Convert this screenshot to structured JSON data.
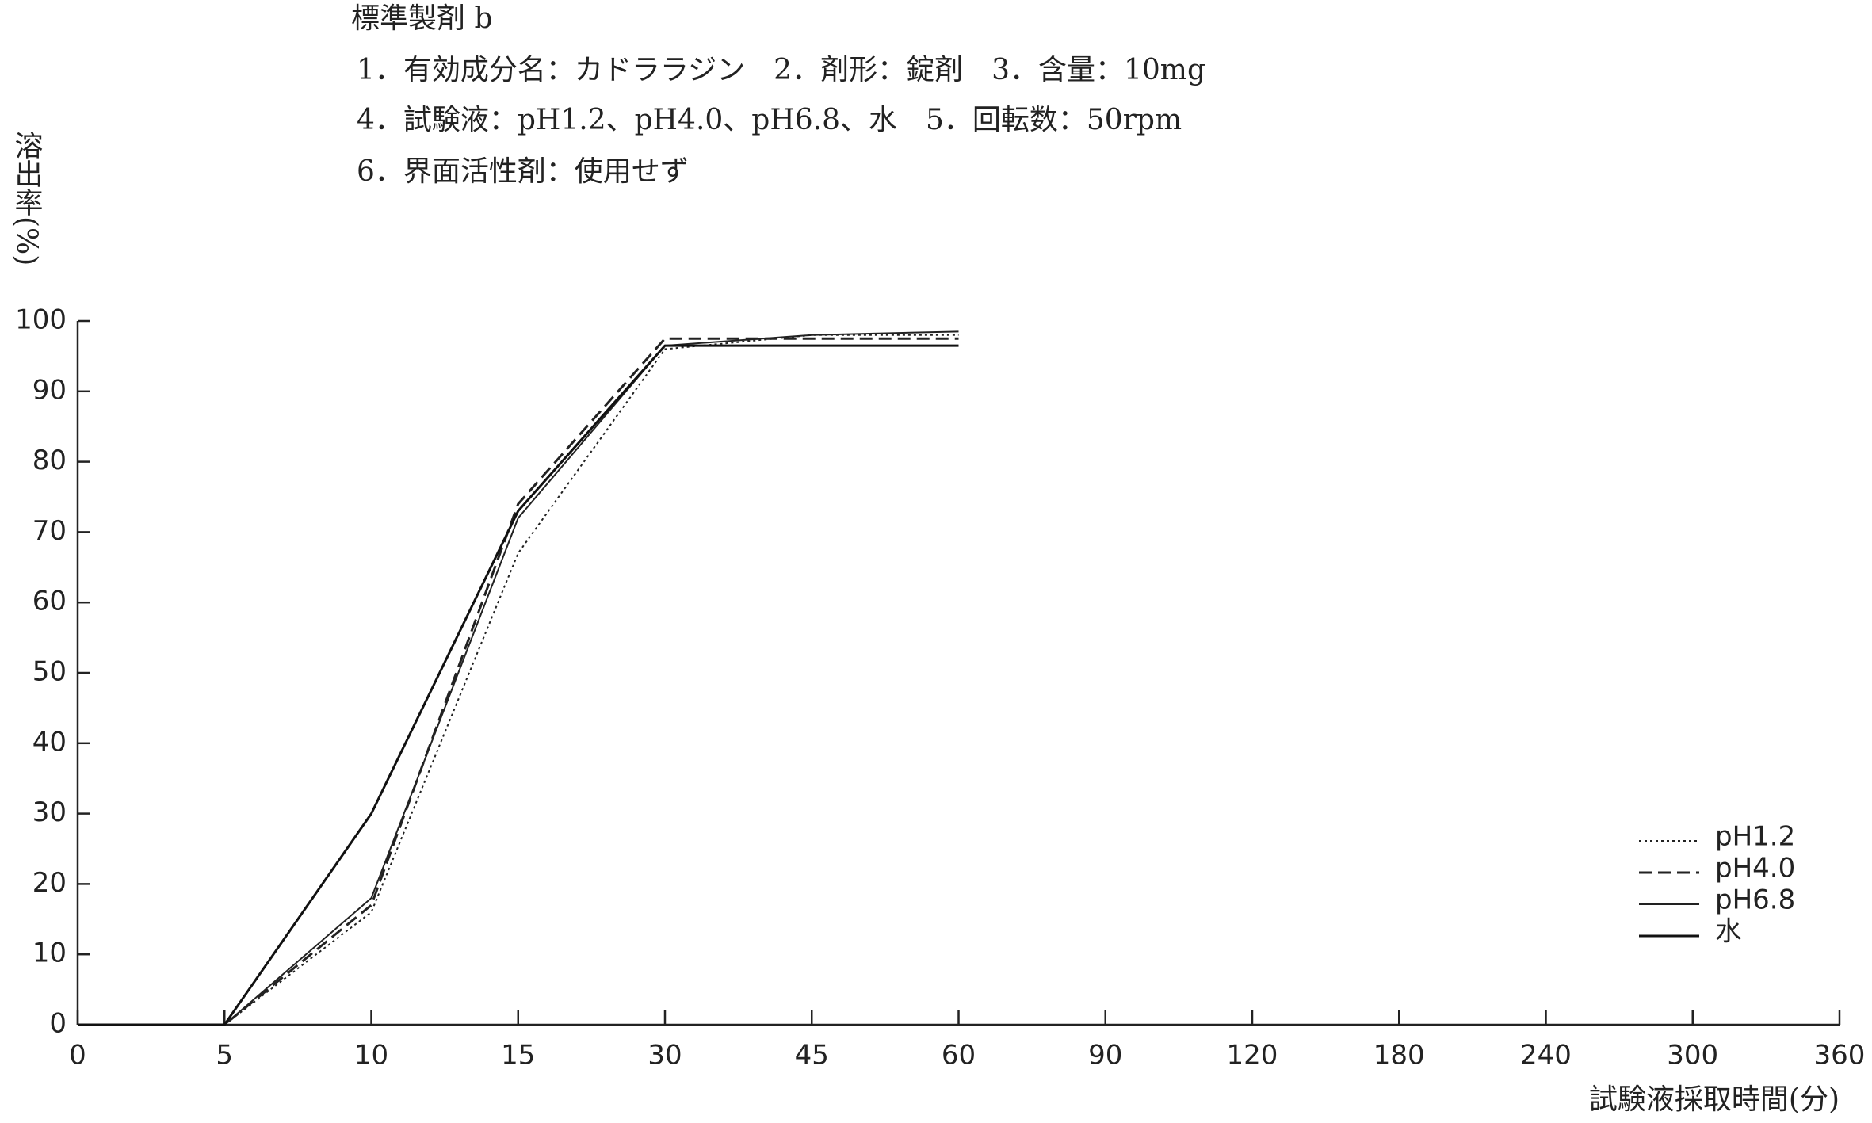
{
  "chart_data": {
    "type": "line",
    "title": "標準製剤 b",
    "notes": [
      "1．有効成分名：カドララジン　2．剤形：錠剤　3．含量：10mg",
      "4．試験液：pH1.2、pH4.0、pH6.8、水　5．回転数：50rpm",
      "6．界面活性剤：使用せず"
    ],
    "y_label": "溶出率(%)",
    "x_label": "試験液採取時間(分)",
    "categories": [
      "0",
      "5",
      "10",
      "15",
      "30",
      "45",
      "60",
      "90",
      "120",
      "180",
      "240",
      "300",
      "360"
    ],
    "series": [
      {
        "name": "pH1.2",
        "color": "#222222",
        "style": "dotted",
        "values": [
          0,
          0,
          16,
          67,
          96,
          98,
          98,
          null,
          null,
          null,
          null,
          null,
          null
        ]
      },
      {
        "name": "pH4.0",
        "color": "#222222",
        "style": "dashed",
        "values": [
          0,
          0,
          17,
          74,
          97.5,
          97.5,
          97.5,
          null,
          null,
          null,
          null,
          null,
          null
        ]
      },
      {
        "name": "pH6.8",
        "color": "#222222",
        "style": "thin",
        "values": [
          0,
          0,
          18,
          72,
          96.5,
          98,
          98.5,
          null,
          null,
          null,
          null,
          null,
          null
        ]
      },
      {
        "name": "水",
        "color": "#111111",
        "style": "solid",
        "values": [
          0,
          0,
          30,
          73,
          96.5,
          96.5,
          96.5,
          null,
          null,
          null,
          null,
          null,
          null
        ]
      }
    ],
    "ylim": [
      0,
      100
    ],
    "yticks": [
      0,
      10,
      20,
      30,
      40,
      50,
      60,
      70,
      80,
      90,
      100
    ],
    "grid": false,
    "legend": "lower-right"
  }
}
